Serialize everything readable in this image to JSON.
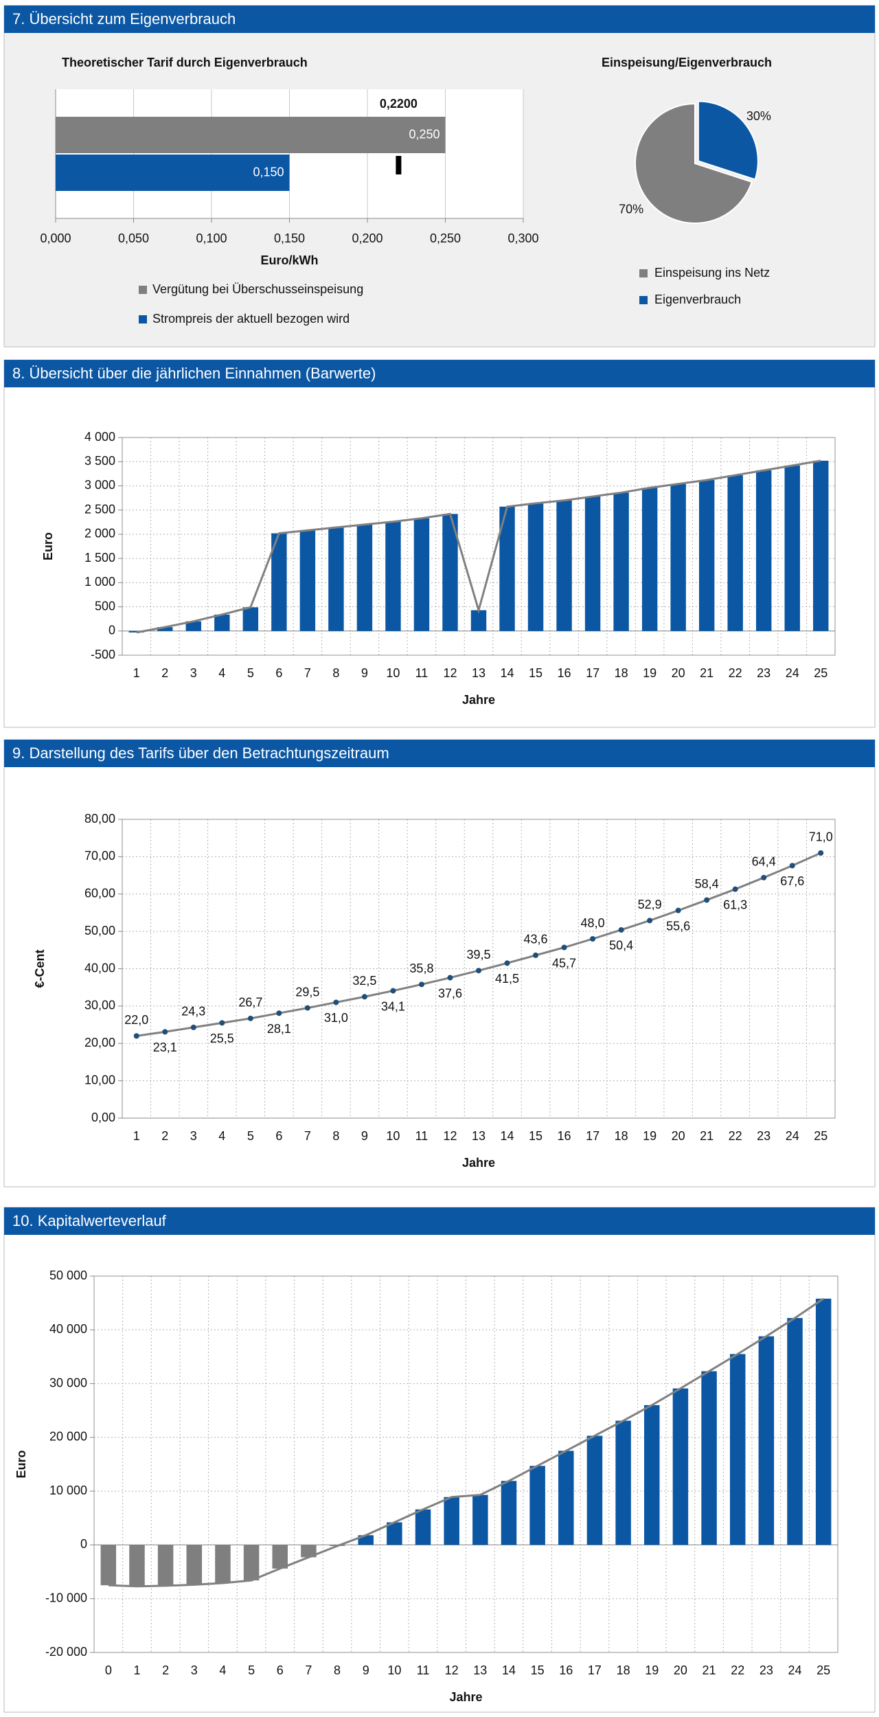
{
  "section_titles": [
    "7. Übersicht zum Eigenverbrauch",
    "8. Übersicht über die jährlichen Einnahmen (Barwerte)",
    "9. Darstellung des Tarifs über den Betrachtungszeitraum",
    "10. Kapitalwerteverlauf"
  ],
  "chart_data": [
    {
      "type": "hbar",
      "title": "Theoretischer Tarif durch Eigenverbrauch",
      "xlabel": "Euro/kWh",
      "xlim": [
        0,
        0.3
      ],
      "xticks": [
        {
          "value": 0,
          "label": "0,000"
        },
        {
          "value": 0.05,
          "label": "0,050"
        },
        {
          "value": 0.1,
          "label": "0,100"
        },
        {
          "value": 0.15,
          "label": "0,150"
        },
        {
          "value": 0.2,
          "label": "0,200"
        },
        {
          "value": 0.25,
          "label": "0,250"
        },
        {
          "value": 0.3,
          "label": "0,300"
        }
      ],
      "series": [
        {
          "name": "Vergütung bei Überschusseinspeisung",
          "color": "#7f7f7f",
          "values": [
            0.25
          ],
          "value_labels": [
            "0,250"
          ]
        },
        {
          "name": "Strompreis der aktuell bezogen wird",
          "color": "#0b57a4",
          "values": [
            0.15
          ],
          "value_labels": [
            "0,150"
          ]
        }
      ],
      "marker": {
        "value": 0.22,
        "label": "0,2200"
      },
      "grid": true
    },
    {
      "type": "pie",
      "title": "Einspeisung/Eigenverbrauch",
      "categories": [
        "Einspeisung ins Netz",
        "Eigenverbrauch"
      ],
      "values": [
        70,
        30
      ],
      "value_labels": [
        "70%",
        "30%"
      ],
      "colors": [
        "#7f7f7f",
        "#0b57a4"
      ]
    },
    {
      "type": "bar",
      "xlabel": "Jahre",
      "ylabel": "Euro",
      "categories": [
        "1",
        "2",
        "3",
        "4",
        "5",
        "6",
        "7",
        "8",
        "9",
        "10",
        "11",
        "12",
        "13",
        "14",
        "15",
        "16",
        "17",
        "18",
        "19",
        "20",
        "21",
        "22",
        "23",
        "24",
        "25"
      ],
      "values": [
        -30,
        80,
        200,
        340,
        490,
        2020,
        2080,
        2140,
        2200,
        2260,
        2330,
        2420,
        430,
        2570,
        2640,
        2700,
        2780,
        2860,
        2960,
        3040,
        3120,
        3220,
        3320,
        3420,
        3520
      ],
      "color": "#0b57a4",
      "line_color": "#808080",
      "overlay_line": true,
      "ylim": [
        -500,
        4000
      ],
      "yticks": [
        -500,
        0,
        500,
        {
          "value": 1000,
          "label": "1 000"
        },
        {
          "value": 1500,
          "label": "1 500"
        },
        {
          "value": 2000,
          "label": "2 000"
        },
        {
          "value": 2500,
          "label": "2 500"
        },
        {
          "value": 3000,
          "label": "3 000"
        },
        {
          "value": 3500,
          "label": "3 500"
        },
        {
          "value": 4000,
          "label": "4 000"
        }
      ],
      "grid": true
    },
    {
      "type": "line",
      "xlabel": "Jahre",
      "ylabel": "€-Cent",
      "categories": [
        "1",
        "2",
        "3",
        "4",
        "5",
        "6",
        "7",
        "8",
        "9",
        "10",
        "11",
        "12",
        "13",
        "14",
        "15",
        "16",
        "17",
        "18",
        "19",
        "20",
        "21",
        "22",
        "23",
        "24",
        "25"
      ],
      "values": [
        22.0,
        23.1,
        24.3,
        25.5,
        26.7,
        28.1,
        29.5,
        31.0,
        32.5,
        34.1,
        35.8,
        37.6,
        39.5,
        41.5,
        43.6,
        45.7,
        48.0,
        50.4,
        52.9,
        55.6,
        58.4,
        61.3,
        64.4,
        67.6,
        71.0
      ],
      "value_labels": [
        "22,0",
        "23,1",
        "24,3",
        "25,5",
        "26,7",
        "28,1",
        "29,5",
        "31,0",
        "32,5",
        "34,1",
        "35,8",
        "37,6",
        "39,5",
        "41,5",
        "43,6",
        "45,7",
        "48,0",
        "50,4",
        "52,9",
        "55,6",
        "58,4",
        "61,3",
        "64,4",
        "67,6",
        "71,0"
      ],
      "color": "#808080",
      "marker_color": "#1f4e79",
      "ylim": [
        0,
        80
      ],
      "yticks": [
        {
          "value": 0,
          "label": "0,00"
        },
        {
          "value": 10,
          "label": "10,00"
        },
        {
          "value": 20,
          "label": "20,00"
        },
        {
          "value": 30,
          "label": "30,00"
        },
        {
          "value": 40,
          "label": "40,00"
        },
        {
          "value": 50,
          "label": "50,00"
        },
        {
          "value": 60,
          "label": "60,00"
        },
        {
          "value": 70,
          "label": "70,00"
        },
        {
          "value": 80,
          "label": "80,00"
        }
      ],
      "grid": true
    },
    {
      "type": "bar",
      "xlabel": "Jahre",
      "ylabel": "Euro",
      "categories": [
        "0",
        "1",
        "2",
        "3",
        "4",
        "5",
        "6",
        "7",
        "8",
        "9",
        "10",
        "11",
        "12",
        "13",
        "14",
        "15",
        "16",
        "17",
        "18",
        "19",
        "20",
        "21",
        "22",
        "23",
        "24",
        "25"
      ],
      "values": [
        -7500,
        -7700,
        -7600,
        -7400,
        -7100,
        -6600,
        -4400,
        -2300,
        -200,
        1800,
        4200,
        6600,
        8900,
        9300,
        11900,
        14700,
        17500,
        20300,
        23100,
        26000,
        29100,
        32300,
        35500,
        38800,
        42200,
        45800
      ],
      "color": "#0b57a4",
      "negative_color": "#7f7f7f",
      "line_color": "#808080",
      "overlay_line": true,
      "ylim": [
        -20000,
        50000
      ],
      "yticks": [
        {
          "value": -20000,
          "label": "-20 000"
        },
        {
          "value": -10000,
          "label": "-10 000"
        },
        0,
        {
          "value": 10000,
          "label": "10 000"
        },
        {
          "value": 20000,
          "label": "20 000"
        },
        {
          "value": 30000,
          "label": "30 000"
        },
        {
          "value": 40000,
          "label": "40 000"
        },
        {
          "value": 50000,
          "label": "50 000"
        }
      ],
      "grid": true
    }
  ]
}
